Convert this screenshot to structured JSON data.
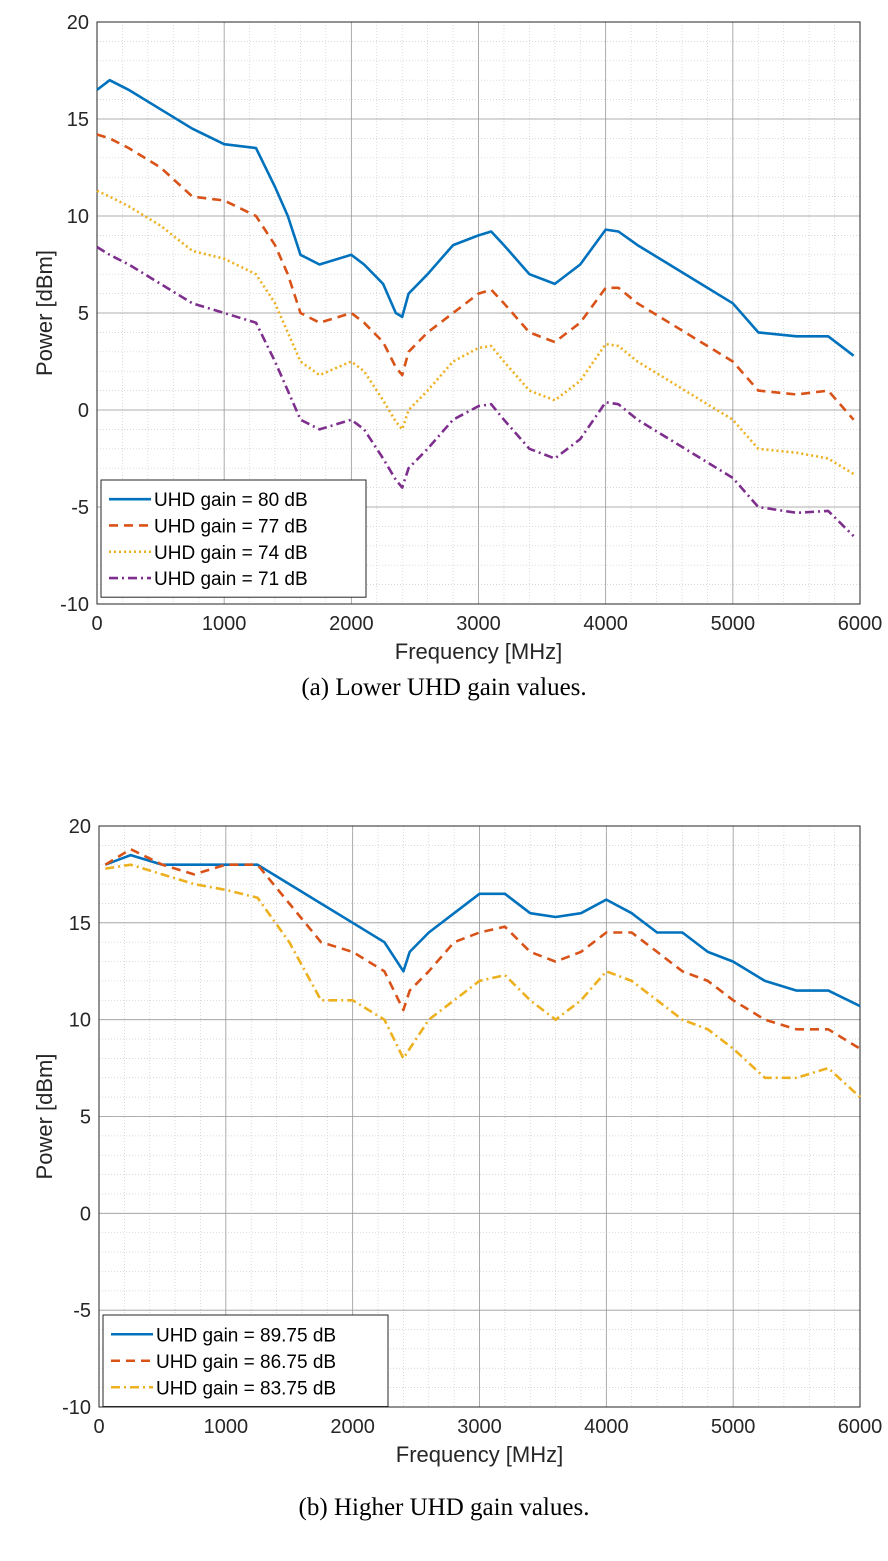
{
  "chart_data": [
    {
      "type": "line",
      "caption": "(a) Lower UHD gain values.",
      "xlabel": "Frequency [MHz]",
      "ylabel": "Power [dBm]",
      "xlim": [
        0,
        6000
      ],
      "ylim": [
        -10,
        20
      ],
      "xticks": [
        0,
        1000,
        2000,
        3000,
        4000,
        5000,
        6000
      ],
      "yticks": [
        -10,
        -5,
        0,
        5,
        10,
        15,
        20
      ],
      "grid": true,
      "minor_grid": true,
      "legend_position": "bottom-left",
      "x": [
        0,
        100,
        250,
        500,
        750,
        1000,
        1250,
        1400,
        1500,
        1600,
        1750,
        2000,
        2100,
        2250,
        2350,
        2400,
        2450,
        2600,
        2800,
        3000,
        3100,
        3200,
        3400,
        3600,
        3800,
        4000,
        4100,
        4250,
        4500,
        4750,
        5000,
        5200,
        5500,
        5750,
        5950
      ],
      "series": [
        {
          "name": "UHD gain = 80 dB",
          "color": "#0072BD",
          "style": "solid",
          "values": [
            16.5,
            17,
            16.5,
            15.5,
            14.5,
            13.7,
            13.5,
            11.5,
            10,
            8,
            7.5,
            8,
            7.5,
            6.5,
            5,
            4.8,
            6,
            7,
            8.5,
            9,
            9.2,
            8.5,
            7,
            6.5,
            7.5,
            9.3,
            9.2,
            8.5,
            7.5,
            6.5,
            5.5,
            4,
            3.8,
            3.8,
            2.8
          ]
        },
        {
          "name": "UHD gain = 77 dB",
          "color": "#D95319",
          "style": "dashed",
          "values": [
            14.2,
            14,
            13.5,
            12.5,
            11,
            10.8,
            10,
            8.5,
            7,
            5,
            4.5,
            5,
            4.5,
            3.5,
            2.2,
            1.8,
            3,
            4,
            5,
            6,
            6.2,
            5.5,
            4,
            3.5,
            4.5,
            6.3,
            6.3,
            5.5,
            4.5,
            3.5,
            2.5,
            1,
            0.8,
            1,
            -0.5
          ]
        },
        {
          "name": "UHD gain = 74 dB",
          "color": "#EDB120",
          "style": "dotted",
          "values": [
            11.3,
            11,
            10.5,
            9.5,
            8.2,
            7.8,
            7,
            5.5,
            4,
            2.5,
            1.8,
            2.5,
            2,
            0.5,
            -0.6,
            -1,
            0,
            1,
            2.5,
            3.2,
            3.3,
            2.5,
            1,
            0.5,
            1.5,
            3.4,
            3.3,
            2.5,
            1.5,
            0.5,
            -0.5,
            -2,
            -2.2,
            -2.5,
            -3.3
          ]
        },
        {
          "name": "UHD gain = 71 dB",
          "color": "#7E2F8E",
          "style": "dashdot",
          "values": [
            8.4,
            8,
            7.5,
            6.5,
            5.5,
            5,
            4.5,
            2.5,
            1,
            -0.5,
            -1,
            -0.5,
            -1,
            -2.5,
            -3.6,
            -4,
            -3,
            -2,
            -0.5,
            0.2,
            0.3,
            -0.5,
            -2,
            -2.5,
            -1.5,
            0.4,
            0.3,
            -0.5,
            -1.5,
            -2.5,
            -3.5,
            -5,
            -5.3,
            -5.2,
            -6.5
          ]
        }
      ]
    },
    {
      "type": "line",
      "caption": "(b) Higher UHD gain values.",
      "xlabel": "Frequency [MHz]",
      "ylabel": "Power [dBm]",
      "xlim": [
        0,
        6000
      ],
      "ylim": [
        -10,
        20
      ],
      "xticks": [
        0,
        1000,
        2000,
        3000,
        4000,
        5000,
        6000
      ],
      "yticks": [
        -10,
        -5,
        0,
        5,
        10,
        15,
        20
      ],
      "grid": true,
      "minor_grid": true,
      "legend_position": "bottom-left",
      "x": [
        50,
        250,
        500,
        750,
        1000,
        1250,
        1500,
        1750,
        2000,
        2250,
        2400,
        2450,
        2600,
        2800,
        3000,
        3200,
        3400,
        3600,
        3800,
        4000,
        4200,
        4400,
        4600,
        4800,
        5000,
        5250,
        5500,
        5750,
        6000
      ],
      "series": [
        {
          "name": "UHD gain = 89.75 dB",
          "color": "#0072BD",
          "style": "solid",
          "values": [
            18,
            18.5,
            18,
            18,
            18,
            18,
            17,
            16,
            15,
            14,
            12.5,
            13.5,
            14.5,
            15.5,
            16.5,
            16.5,
            15.5,
            15.3,
            15.5,
            16.2,
            15.5,
            14.5,
            14.5,
            13.5,
            13,
            12,
            11.5,
            11.5,
            10.7
          ]
        },
        {
          "name": "UHD gain = 86.75 dB",
          "color": "#D95319",
          "style": "dashed",
          "values": [
            18,
            18.8,
            18,
            17.5,
            18,
            18,
            16,
            14,
            13.5,
            12.5,
            10.5,
            11.5,
            12.5,
            14,
            14.5,
            14.8,
            13.5,
            13,
            13.5,
            14.5,
            14.5,
            13.5,
            12.5,
            12,
            11,
            10,
            9.5,
            9.5,
            8.5
          ]
        },
        {
          "name": "UHD gain = 83.75 dB",
          "color": "#EDB120",
          "style": "dashdot",
          "values": [
            17.8,
            18,
            17.5,
            17,
            16.7,
            16.3,
            14,
            11,
            11,
            10,
            8,
            8.5,
            10,
            11,
            12,
            12.3,
            11,
            10,
            11,
            12.5,
            12,
            11,
            10,
            9.5,
            8.5,
            7,
            7,
            7.5,
            6
          ]
        }
      ]
    }
  ]
}
